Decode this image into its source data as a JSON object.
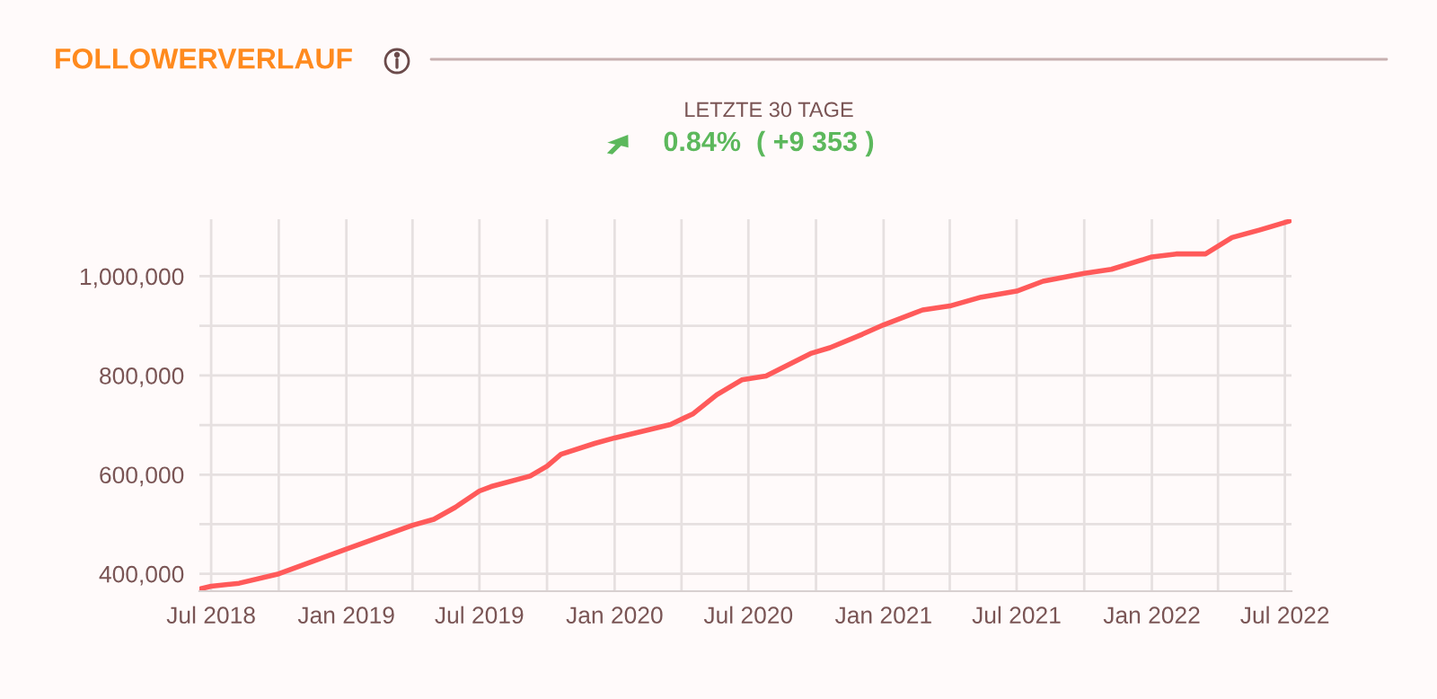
{
  "chart_data": {
    "type": "line",
    "title": "FOLLOWERVERLAUF",
    "subtitle": "LETZTE 30 TAGE",
    "annotations": [
      "0.84%  ( +9 353 )"
    ],
    "x": [
      "2018-06-17",
      "2018-07-01",
      "2018-08-08",
      "2018-10-01",
      "2019-01-01",
      "2019-04-01",
      "2019-04-30",
      "2019-05-29",
      "2019-07-01",
      "2019-07-17",
      "2019-09-08",
      "2019-10-01",
      "2019-10-20",
      "2019-12-05",
      "2020-01-01",
      "2020-03-17",
      "2020-04-17",
      "2020-05-19",
      "2020-06-22",
      "2020-07-25",
      "2020-09-25",
      "2020-10-20",
      "2020-12-03",
      "2021-01-01",
      "2021-02-23",
      "2021-04-01",
      "2021-05-14",
      "2021-07-01",
      "2021-08-06",
      "2021-10-01",
      "2021-11-07",
      "2022-01-01",
      "2022-02-03",
      "2022-03-15",
      "2022-04-20",
      "2022-05-27",
      "2022-07-07"
    ],
    "series": [
      {
        "color": "#ff5a5a",
        "values": [
          370000,
          375000,
          381000,
          400000,
          450000,
          498000,
          510000,
          534000,
          567000,
          576000,
          597000,
          617000,
          641000,
          663000,
          674000,
          701000,
          723000,
          761000,
          791000,
          799000,
          845000,
          856000,
          883000,
          902000,
          932000,
          940000,
          958000,
          970000,
          990000,
          1006000,
          1014000,
          1039000,
          1045000,
          1045000,
          1078000,
          1093000,
          1111000
        ]
      }
    ],
    "xlim": [
      "2018-06-15",
      "2022-07-10"
    ],
    "xticks": [
      {
        "value": "2018-07-01",
        "label": "Jul 2018"
      },
      {
        "value": "2018-10-01",
        "label": null
      },
      {
        "value": "2019-01-01",
        "label": "Jan 2019"
      },
      {
        "value": "2019-04-01",
        "label": null
      },
      {
        "value": "2019-07-01",
        "label": "Jul 2019"
      },
      {
        "value": "2019-10-01",
        "label": null
      },
      {
        "value": "2020-01-01",
        "label": "Jan 2020"
      },
      {
        "value": "2020-04-01",
        "label": null
      },
      {
        "value": "2020-07-01",
        "label": "Jul 2020"
      },
      {
        "value": "2020-10-01",
        "label": null
      },
      {
        "value": "2021-01-01",
        "label": "Jan 2021"
      },
      {
        "value": "2021-04-01",
        "label": null
      },
      {
        "value": "2021-07-01",
        "label": "Jul 2021"
      },
      {
        "value": "2021-10-01",
        "label": null
      },
      {
        "value": "2022-01-01",
        "label": "Jan 2022"
      },
      {
        "value": "2022-04-01",
        "label": null
      },
      {
        "value": "2022-07-01",
        "label": "Jul 2022"
      }
    ],
    "ylim": [
      365000,
      1115000
    ],
    "yticks": [
      {
        "value": 400000,
        "label": "400,000"
      },
      {
        "value": 500000,
        "label": null
      },
      {
        "value": 600000,
        "label": "600,000"
      },
      {
        "value": 700000,
        "label": null
      },
      {
        "value": 800000,
        "label": "800,000"
      },
      {
        "value": 900000,
        "label": null
      },
      {
        "value": 1000000,
        "label": "1,000,000"
      }
    ],
    "grid": true,
    "marker": "none",
    "line_style": "solid"
  }
}
